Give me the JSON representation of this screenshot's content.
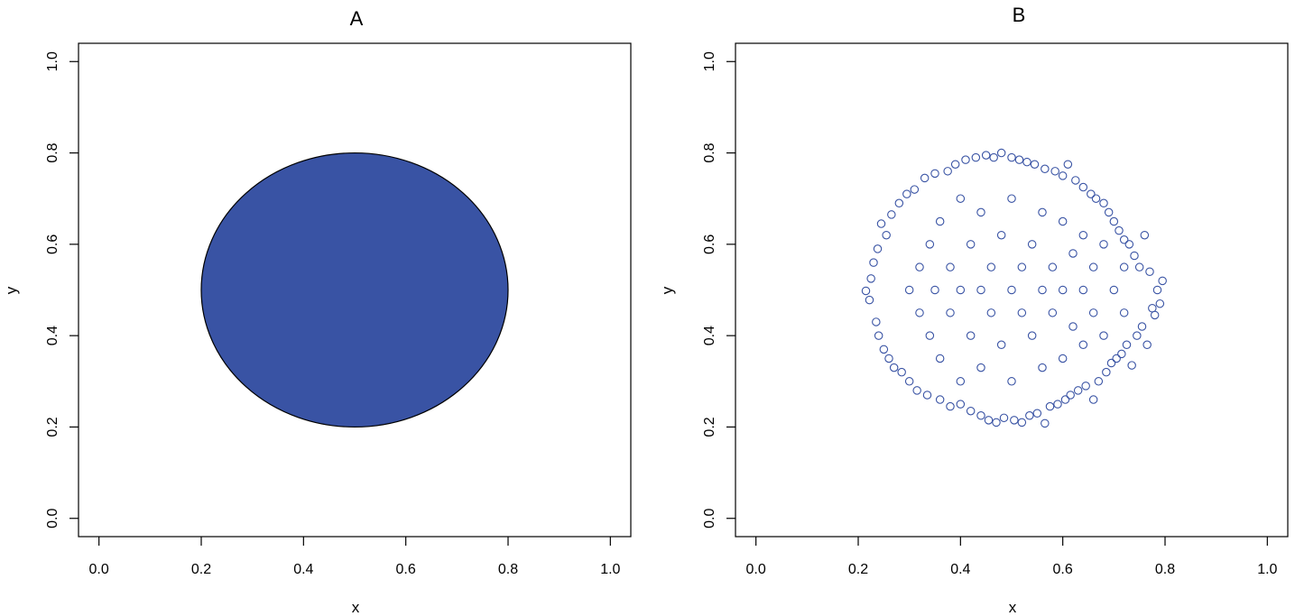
{
  "chart_data": [
    {
      "type": "scatter",
      "title": "A",
      "xlabel": "x",
      "ylabel": "y",
      "xlim": [
        -0.04,
        1.04
      ],
      "ylim": [
        -0.04,
        1.04
      ],
      "x_ticks": [
        0.0,
        0.2,
        0.4,
        0.6,
        0.8,
        1.0
      ],
      "y_ticks": [
        0.0,
        0.2,
        0.4,
        0.6,
        0.8,
        1.0
      ],
      "tick_labels": [
        "0.0",
        "0.2",
        "0.4",
        "0.6",
        "0.8",
        "1.0"
      ],
      "grid": false,
      "shapes": [
        {
          "kind": "filled-circle",
          "center": [
            0.5,
            0.5
          ],
          "radius_data_units": 0.3,
          "fill": "#3953a4",
          "stroke": "#000000"
        }
      ]
    },
    {
      "type": "scatter",
      "title": "B",
      "xlabel": "x",
      "ylabel": "y",
      "xlim": [
        -0.04,
        1.04
      ],
      "ylim": [
        -0.04,
        1.04
      ],
      "x_ticks": [
        0.0,
        0.2,
        0.4,
        0.6,
        0.8,
        1.0
      ],
      "y_ticks": [
        0.0,
        0.2,
        0.4,
        0.6,
        0.8,
        1.0
      ],
      "tick_labels": [
        "0.0",
        "0.2",
        "0.4",
        "0.6",
        "0.8",
        "1.0"
      ],
      "grid": false,
      "marker": "open-circle",
      "color": "#3953a4",
      "points": [
        [
          0.215,
          0.498
        ],
        [
          0.222,
          0.478
        ],
        [
          0.225,
          0.525
        ],
        [
          0.23,
          0.56
        ],
        [
          0.235,
          0.43
        ],
        [
          0.238,
          0.59
        ],
        [
          0.24,
          0.4
        ],
        [
          0.245,
          0.645
        ],
        [
          0.25,
          0.37
        ],
        [
          0.255,
          0.62
        ],
        [
          0.26,
          0.35
        ],
        [
          0.265,
          0.665
        ],
        [
          0.27,
          0.33
        ],
        [
          0.28,
          0.69
        ],
        [
          0.285,
          0.32
        ],
        [
          0.295,
          0.71
        ],
        [
          0.3,
          0.3
        ],
        [
          0.31,
          0.72
        ],
        [
          0.315,
          0.28
        ],
        [
          0.33,
          0.745
        ],
        [
          0.335,
          0.27
        ],
        [
          0.35,
          0.755
        ],
        [
          0.36,
          0.26
        ],
        [
          0.375,
          0.76
        ],
        [
          0.38,
          0.245
        ],
        [
          0.39,
          0.775
        ],
        [
          0.4,
          0.25
        ],
        [
          0.41,
          0.785
        ],
        [
          0.42,
          0.235
        ],
        [
          0.43,
          0.79
        ],
        [
          0.44,
          0.225
        ],
        [
          0.45,
          0.795
        ],
        [
          0.455,
          0.215
        ],
        [
          0.465,
          0.79
        ],
        [
          0.47,
          0.21
        ],
        [
          0.48,
          0.8
        ],
        [
          0.485,
          0.22
        ],
        [
          0.5,
          0.79
        ],
        [
          0.505,
          0.215
        ],
        [
          0.515,
          0.785
        ],
        [
          0.52,
          0.21
        ],
        [
          0.53,
          0.78
        ],
        [
          0.535,
          0.225
        ],
        [
          0.545,
          0.775
        ],
        [
          0.55,
          0.23
        ],
        [
          0.565,
          0.765
        ],
        [
          0.565,
          0.208
        ],
        [
          0.575,
          0.245
        ],
        [
          0.585,
          0.76
        ],
        [
          0.59,
          0.25
        ],
        [
          0.6,
          0.75
        ],
        [
          0.605,
          0.26
        ],
        [
          0.61,
          0.775
        ],
        [
          0.615,
          0.27
        ],
        [
          0.625,
          0.74
        ],
        [
          0.63,
          0.28
        ],
        [
          0.64,
          0.725
        ],
        [
          0.645,
          0.29
        ],
        [
          0.655,
          0.71
        ],
        [
          0.66,
          0.26
        ],
        [
          0.665,
          0.7
        ],
        [
          0.67,
          0.3
        ],
        [
          0.68,
          0.69
        ],
        [
          0.685,
          0.32
        ],
        [
          0.69,
          0.67
        ],
        [
          0.695,
          0.34
        ],
        [
          0.7,
          0.65
        ],
        [
          0.705,
          0.35
        ],
        [
          0.71,
          0.63
        ],
        [
          0.715,
          0.36
        ],
        [
          0.72,
          0.61
        ],
        [
          0.725,
          0.38
        ],
        [
          0.73,
          0.6
        ],
        [
          0.735,
          0.335
        ],
        [
          0.74,
          0.575
        ],
        [
          0.745,
          0.4
        ],
        [
          0.75,
          0.55
        ],
        [
          0.755,
          0.42
        ],
        [
          0.76,
          0.62
        ],
        [
          0.765,
          0.38
        ],
        [
          0.77,
          0.54
        ],
        [
          0.775,
          0.46
        ],
        [
          0.78,
          0.445
        ],
        [
          0.785,
          0.5
        ],
        [
          0.79,
          0.47
        ],
        [
          0.795,
          0.52
        ],
        [
          0.3,
          0.5
        ],
        [
          0.32,
          0.45
        ],
        [
          0.32,
          0.55
        ],
        [
          0.34,
          0.4
        ],
        [
          0.34,
          0.6
        ],
        [
          0.35,
          0.5
        ],
        [
          0.36,
          0.35
        ],
        [
          0.36,
          0.65
        ],
        [
          0.38,
          0.45
        ],
        [
          0.38,
          0.55
        ],
        [
          0.4,
          0.3
        ],
        [
          0.4,
          0.7
        ],
        [
          0.4,
          0.5
        ],
        [
          0.42,
          0.4
        ],
        [
          0.42,
          0.6
        ],
        [
          0.44,
          0.5
        ],
        [
          0.44,
          0.33
        ],
        [
          0.44,
          0.67
        ],
        [
          0.46,
          0.45
        ],
        [
          0.46,
          0.55
        ],
        [
          0.48,
          0.38
        ],
        [
          0.48,
          0.62
        ],
        [
          0.5,
          0.5
        ],
        [
          0.5,
          0.3
        ],
        [
          0.5,
          0.7
        ],
        [
          0.52,
          0.45
        ],
        [
          0.52,
          0.55
        ],
        [
          0.54,
          0.4
        ],
        [
          0.54,
          0.6
        ],
        [
          0.56,
          0.5
        ],
        [
          0.56,
          0.33
        ],
        [
          0.56,
          0.67
        ],
        [
          0.58,
          0.45
        ],
        [
          0.58,
          0.55
        ],
        [
          0.6,
          0.35
        ],
        [
          0.6,
          0.65
        ],
        [
          0.6,
          0.5
        ],
        [
          0.62,
          0.42
        ],
        [
          0.62,
          0.58
        ],
        [
          0.64,
          0.5
        ],
        [
          0.64,
          0.38
        ],
        [
          0.64,
          0.62
        ],
        [
          0.66,
          0.45
        ],
        [
          0.66,
          0.55
        ],
        [
          0.68,
          0.4
        ],
        [
          0.68,
          0.6
        ],
        [
          0.7,
          0.5
        ],
        [
          0.72,
          0.45
        ],
        [
          0.72,
          0.55
        ]
      ]
    }
  ]
}
